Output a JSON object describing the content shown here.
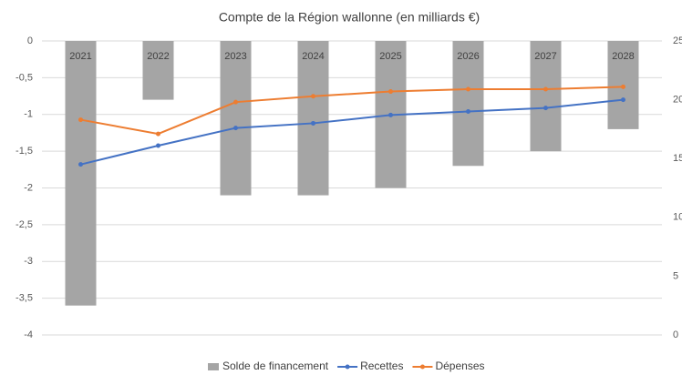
{
  "chart_data": {
    "type": "bar",
    "title": "Compte de la Région wallonne (en milliards €)",
    "categories": [
      "2021",
      "2022",
      "2023",
      "2024",
      "2025",
      "2026",
      "2027",
      "2028"
    ],
    "series": [
      {
        "name": "Solde de financement",
        "type": "bar",
        "color": "#a5a5a5",
        "values": [
          -3.6,
          -0.8,
          -2.1,
          -2.1,
          -2.0,
          -1.7,
          -1.5,
          -1.2
        ]
      },
      {
        "name": "Recettes",
        "type": "line",
        "axis": "y2",
        "color": "#4472c4",
        "values": [
          14.5,
          16.1,
          17.6,
          18.0,
          18.7,
          19.0,
          19.3,
          20.0
        ]
      },
      {
        "name": "Dépenses",
        "type": "line",
        "axis": "y2",
        "color": "#ed7d31",
        "values": [
          18.3,
          17.1,
          19.8,
          20.3,
          20.7,
          20.9,
          20.9,
          21.1
        ]
      }
    ],
    "ylim": [
      0,
      -4
    ],
    "yticks": [
      0,
      {
        "value": -0.5,
        "label": "-0,5"
      },
      -1,
      {
        "value": -1.5,
        "label": "-1,5"
      },
      -2,
      {
        "value": -2.5,
        "label": "-2,5"
      },
      -3,
      {
        "value": -3.5,
        "label": "-3,5"
      },
      -4
    ],
    "y2lim": [
      25,
      0
    ],
    "y2ticks": [
      0,
      5,
      10,
      15,
      20,
      25
    ],
    "grid": true
  }
}
